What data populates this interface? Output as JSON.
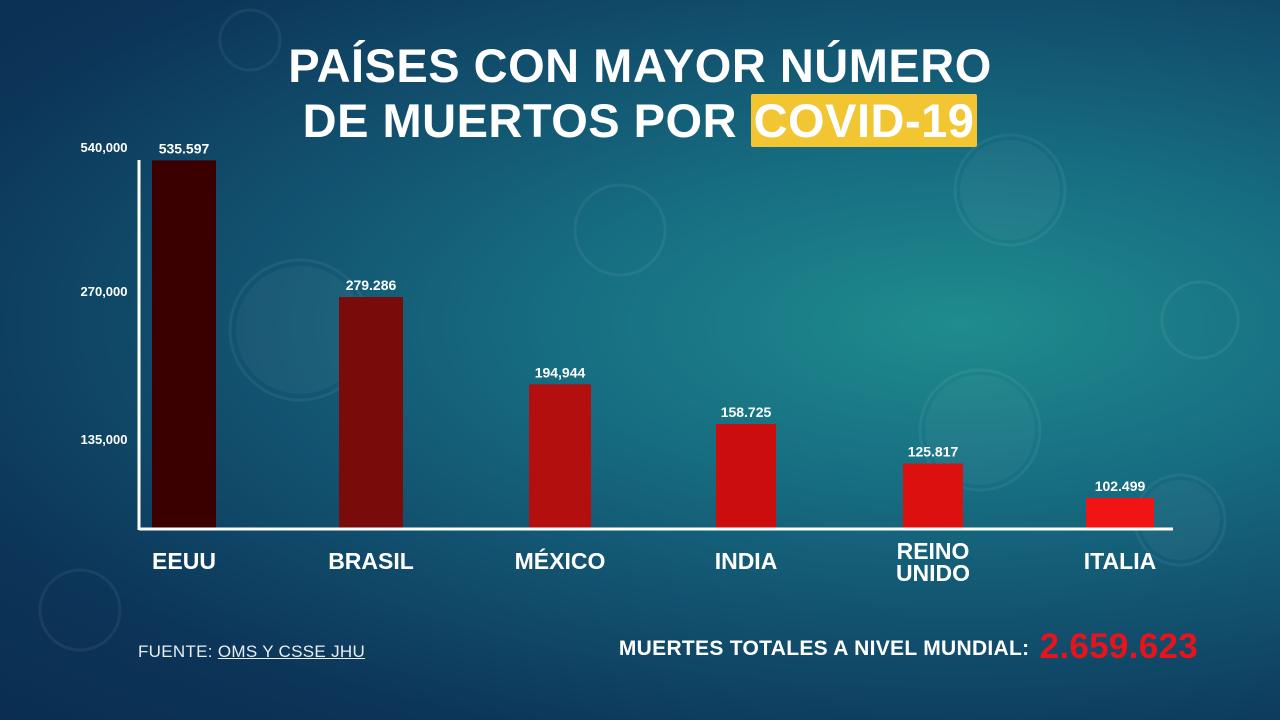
{
  "title": {
    "line1": "PAÍSES CON MAYOR NÚMERO",
    "line2_prefix": "DE MUERTOS POR",
    "line2_highlight": "COVID-19"
  },
  "chart_data": {
    "type": "bar",
    "categories": [
      "EEUU",
      "BRASIL",
      "MÉXICO",
      "INDIA",
      "REINO UNIDO",
      "ITALIA"
    ],
    "category_lines": [
      [
        "EEUU"
      ],
      [
        "BRASIL"
      ],
      [
        "MÉXICO"
      ],
      [
        "INDIA"
      ],
      [
        "REINO",
        "UNIDO"
      ],
      [
        "ITALIA"
      ]
    ],
    "values": [
      535597,
      279286,
      194944,
      158725,
      125817,
      102499
    ],
    "value_labels": [
      "535.597",
      "279.286",
      "194,944",
      "158.725",
      "125.817",
      "102.499"
    ],
    "y_ticks": [
      135000,
      270000,
      540000
    ],
    "y_tick_labels": [
      "135,000",
      "270,000",
      "540,000"
    ],
    "y_scale": "nonlinear",
    "bar_colors": [
      "#3a0000",
      "#790b0b",
      "#b30f0f",
      "#cc0d0d",
      "#dd1010",
      "#f01414"
    ],
    "grid": false,
    "title": "PAÍSES CON MAYOR NÚMERO DE MUERTOS POR COVID-19"
  },
  "source": {
    "prefix": "FUENTE:",
    "link": "OMS Y CSSE JHU"
  },
  "total": {
    "label": "MUERTES TOTALES A NIVEL MUNDIAL:",
    "value": "2.659.623"
  },
  "colors": {
    "highlight": "#f2c532",
    "total_value": "#e8131b"
  }
}
